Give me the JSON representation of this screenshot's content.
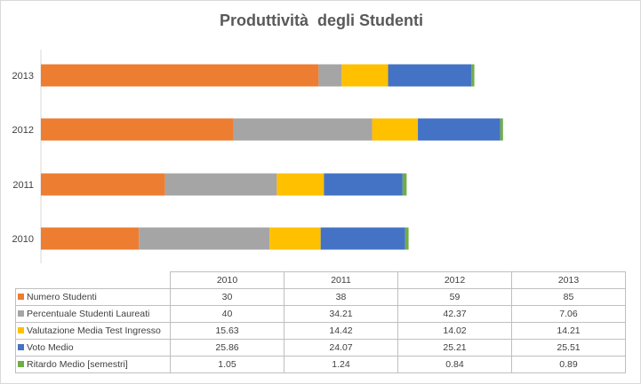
{
  "chart_data": {
    "type": "bar",
    "orientation": "horizontal",
    "stacked": true,
    "title": "Produttività  degli Studenti",
    "categories": [
      "2010",
      "2011",
      "2012",
      "2013"
    ],
    "series": [
      {
        "name": "Numero Studenti",
        "color": "#ED7D31",
        "values": [
          30,
          38,
          59,
          85
        ]
      },
      {
        "name": "Percentuale Studenti Laureati",
        "color": "#A5A5A5",
        "values": [
          40,
          34.21,
          42.37,
          7.06
        ]
      },
      {
        "name": "Valutazione Media Test Ingresso",
        "color": "#FFC000",
        "values": [
          15.63,
          14.42,
          14.02,
          14.21
        ]
      },
      {
        "name": "Voto Medio",
        "color": "#4472C4",
        "values": [
          25.86,
          24.07,
          25.21,
          25.51
        ]
      },
      {
        "name": "Ritardo Medio [semestri]",
        "color": "#70AD47",
        "values": [
          1.05,
          1.24,
          0.84,
          0.89
        ]
      }
    ],
    "xlim": [
      0,
      160
    ],
    "grid": false,
    "legend": "data-table"
  },
  "table": {
    "years": [
      "2010",
      "2011",
      "2012",
      "2013"
    ],
    "rows": [
      {
        "label": "Numero Studenti",
        "values": [
          "30",
          "38",
          "59",
          "85"
        ]
      },
      {
        "label": "Percentuale Studenti Laureati",
        "values": [
          "40",
          "34.21",
          "42.37",
          "7.06"
        ]
      },
      {
        "label": "Valutazione Media Test Ingresso",
        "values": [
          "15.63",
          "14.42",
          "14.02",
          "14.21"
        ]
      },
      {
        "label": "Voto Medio",
        "values": [
          "25.86",
          "24.07",
          "25.21",
          "25.51"
        ]
      },
      {
        "label": "Ritardo Medio [semestri]",
        "values": [
          "1.05",
          "1.24",
          "0.84",
          "0.89"
        ]
      }
    ]
  }
}
